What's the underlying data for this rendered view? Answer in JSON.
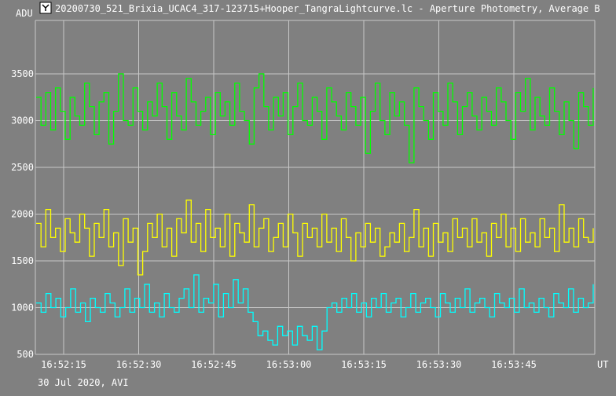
{
  "window": {
    "title": "20200730_521_Brixia_UCAC4_317-123715+Hooper_TangraLightcurve.lc - Aperture Photometry, Average B",
    "app_icon": "tangra-icon"
  },
  "footer": {
    "date_line": "30 Jul 2020, AVI"
  },
  "colors": {
    "background": "#808080",
    "grid": "#c8c8c8",
    "green": "#00ff00",
    "yellow": "#ffff00",
    "cyan": "#00ffff",
    "text": "#ffffff"
  },
  "chart_data": {
    "type": "line",
    "ylabel": "ADU",
    "xlabel": "UT",
    "ylim": [
      500,
      3800
    ],
    "y_ticks": [
      500,
      1000,
      1500,
      2000,
      2500,
      3000,
      3500
    ],
    "x_range_seconds": [
      0,
      74
    ],
    "x_ticks": [
      {
        "t": 3.0,
        "label": "16:52:15"
      },
      {
        "t": 18.0,
        "label": "16:52:30"
      },
      {
        "t": 33.0,
        "label": "16:52:45"
      },
      {
        "t": 48.0,
        "label": "16:53:00"
      },
      {
        "t": 63.0,
        "label": "16:53:15"
      },
      {
        "t": 78.0,
        "label": "16:53:30"
      },
      {
        "t": 93.0,
        "label": "16:53:45"
      }
    ],
    "grid": true,
    "series": [
      {
        "name": "",
        "color": "#00ff00",
        "values": [
          3250,
          2950,
          3300,
          2900,
          3350,
          3100,
          2800,
          3250,
          3050,
          2950,
          3400,
          3150,
          2850,
          3200,
          3300,
          2750,
          3100,
          3500,
          3000,
          2950,
          3350,
          3100,
          2900,
          3200,
          3050,
          3400,
          3150,
          2800,
          3300,
          3050,
          2900,
          3450,
          3200,
          2950,
          3100,
          3250,
          2850,
          3300,
          3050,
          3200,
          2950,
          3400,
          3100,
          3000,
          2750,
          3350,
          3500,
          3150,
          2900,
          3250,
          3050,
          3300,
          2850,
          3150,
          3400,
          3000,
          2950,
          3250,
          3100,
          2800,
          3350,
          3200,
          3050,
          2900,
          3300,
          3150,
          2950,
          3250,
          2650,
          3100,
          3400,
          3000,
          2850,
          3300,
          3050,
          3200,
          2950,
          2550,
          3350,
          3150,
          3000,
          2800,
          3300,
          3100,
          2950,
          3400,
          3200,
          2850,
          3150,
          3300,
          3050,
          2900,
          3250,
          3100,
          2950,
          3350,
          3200,
          3000,
          2800,
          3300,
          3100,
          3450,
          2900,
          3250,
          3050,
          2950,
          3350,
          3100,
          2850,
          3200,
          3000,
          2700,
          3300,
          3150,
          2950,
          3350
        ]
      },
      {
        "name": "",
        "color": "#ffff00",
        "values": [
          1900,
          1650,
          2050,
          1750,
          1850,
          1600,
          1950,
          1800,
          1700,
          2000,
          1850,
          1550,
          1900,
          1750,
          2050,
          1650,
          1800,
          1450,
          1950,
          1700,
          1850,
          1350,
          1600,
          1900,
          1750,
          2000,
          1650,
          1850,
          1550,
          1950,
          1800,
          2150,
          1700,
          1900,
          1600,
          2050,
          1750,
          1850,
          1650,
          2000,
          1550,
          1900,
          1800,
          1700,
          2100,
          1650,
          1850,
          1950,
          1600,
          1750,
          1900,
          1650,
          2000,
          1800,
          1550,
          1900,
          1750,
          1850,
          1650,
          2000,
          1700,
          1850,
          1600,
          1950,
          1750,
          1500,
          1800,
          1650,
          1900,
          1700,
          1850,
          1550,
          1650,
          1800,
          1700,
          1900,
          1600,
          1750,
          2050,
          1650,
          1850,
          1550,
          1900,
          1700,
          1800,
          1600,
          1950,
          1750,
          1850,
          1650,
          1950,
          1700,
          1800,
          1550,
          1900,
          1750,
          2000,
          1650,
          1850,
          1600,
          1950,
          1700,
          1800,
          1650,
          1950,
          1750,
          1850,
          1600,
          2100,
          1700,
          1850,
          1650,
          1950,
          1750,
          1700,
          1850
        ]
      },
      {
        "name": "",
        "color": "#00ffff",
        "values": [
          1050,
          950,
          1150,
          1000,
          1100,
          900,
          1000,
          1200,
          950,
          1050,
          850,
          1100,
          1000,
          950,
          1150,
          1050,
          900,
          1000,
          1200,
          950,
          1100,
          1000,
          1250,
          950,
          1050,
          900,
          1150,
          1000,
          950,
          1100,
          1200,
          1000,
          1350,
          950,
          1100,
          1050,
          1250,
          900,
          1150,
          1000,
          1300,
          1050,
          1200,
          950,
          850,
          700,
          750,
          650,
          600,
          800,
          700,
          750,
          600,
          800,
          700,
          650,
          800,
          550,
          750,
          1000,
          1050,
          950,
          1100,
          1000,
          1150,
          950,
          1050,
          900,
          1100,
          1000,
          1150,
          950,
          1050,
          1100,
          900,
          1000,
          1150,
          950,
          1050,
          1100,
          1000,
          900,
          1150,
          1050,
          950,
          1100,
          1000,
          1200,
          950,
          1050,
          1100,
          1000,
          900,
          1150,
          1050,
          1000,
          1100,
          950,
          1200,
          1000,
          1050,
          950,
          1100,
          1000,
          900,
          1150,
          1050,
          1000,
          1200,
          950,
          1100,
          1000,
          1050,
          1250
        ]
      }
    ]
  }
}
